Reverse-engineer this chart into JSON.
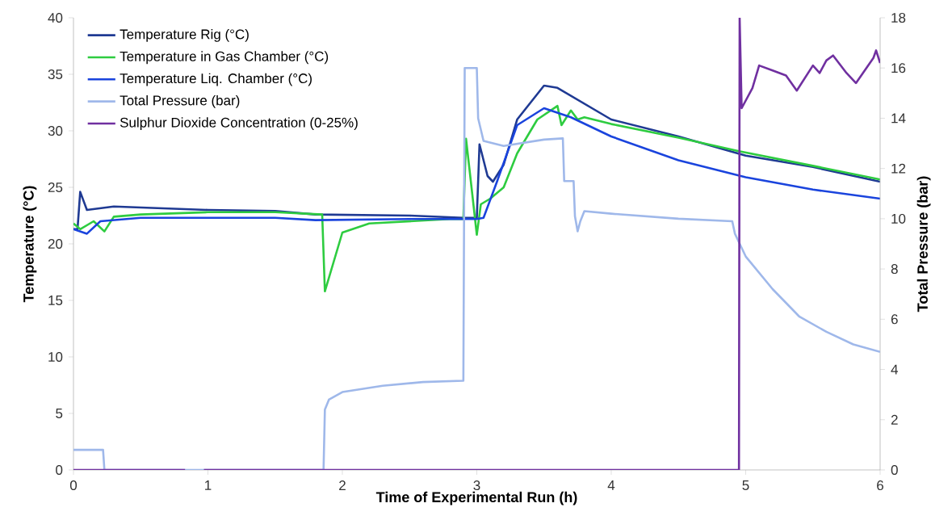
{
  "chart_data": {
    "type": "line",
    "xlabel": "Time of Experimental Run (h)",
    "ylabel": "Temperature (°C)",
    "y2label": "Total Pressure (bar)",
    "xlim": [
      0,
      6
    ],
    "xticks": [
      0,
      1,
      2,
      3,
      4,
      5,
      6
    ],
    "ylim": [
      0,
      40
    ],
    "yticks": [
      0,
      5,
      10,
      15,
      20,
      25,
      30,
      35,
      40
    ],
    "y2lim": [
      0,
      18
    ],
    "y2ticks": [
      0,
      2,
      4,
      6,
      8,
      10,
      12,
      14,
      16,
      18
    ],
    "legend": "top left",
    "grid": false,
    "marker": "none",
    "line_style": "solid",
    "series": [
      {
        "name": "Temperature Rig (°C)",
        "color": "#1f3a93",
        "x": [
          0,
          0.03,
          0.05,
          0.1,
          0.3,
          1,
          1.5,
          1.8,
          2.5,
          2.9,
          3.0,
          3.02,
          3.08,
          3.12,
          3.2,
          3.3,
          3.5,
          3.6,
          4.0,
          4.5,
          5.0,
          5.5,
          6.0
        ],
        "values": [
          21.3,
          21.3,
          24.6,
          23.0,
          23.3,
          23.0,
          22.9,
          22.6,
          22.5,
          22.3,
          22.3,
          28.8,
          26.0,
          25.5,
          27.0,
          31.0,
          34.0,
          33.8,
          31.0,
          29.5,
          27.8,
          26.8,
          25.5
        ]
      },
      {
        "name": "Temperature in Gas Chamber (°C)",
        "color": "#2ecc40",
        "x": [
          0,
          0.05,
          0.15,
          0.23,
          0.3,
          0.5,
          1,
          1.5,
          1.85,
          1.87,
          2.0,
          2.2,
          2.8,
          2.9,
          2.92,
          2.97,
          3.0,
          3.03,
          3.1,
          3.2,
          3.3,
          3.45,
          3.6,
          3.63,
          3.7,
          3.75,
          3.8,
          4.0,
          4.5,
          4.95,
          5.5,
          6.0
        ],
        "values": [
          21.8,
          21.3,
          22.0,
          21.1,
          22.4,
          22.6,
          22.8,
          22.8,
          22.6,
          15.8,
          21.0,
          21.8,
          22.2,
          22.2,
          29.3,
          24.0,
          20.8,
          23.5,
          24.0,
          25.0,
          28.0,
          31.0,
          32.2,
          30.5,
          31.8,
          31.0,
          31.2,
          30.6,
          29.4,
          28.2,
          26.9,
          25.7
        ]
      },
      {
        "name": "Temperature Liq. Chamber (°C)",
        "color": "#1a44dd",
        "x": [
          0,
          0.1,
          0.2,
          0.5,
          1.5,
          1.8,
          2.5,
          3.0,
          3.05,
          3.15,
          3.3,
          3.5,
          3.7,
          4.0,
          4.5,
          5.0,
          5.5,
          6.0
        ],
        "values": [
          21.3,
          20.9,
          22.0,
          22.3,
          22.3,
          22.1,
          22.2,
          22.2,
          22.3,
          25.5,
          30.5,
          32.0,
          31.2,
          29.5,
          27.4,
          25.9,
          24.8,
          24.0
        ]
      },
      {
        "name": "Total Pressure (bar)",
        "color": "#9fb8ea",
        "axis": "y2",
        "x": [
          0,
          0.22,
          0.23,
          1.86,
          1.87,
          1.9,
          2.0,
          2.3,
          2.6,
          2.9,
          2.91,
          3.0,
          3.01,
          3.05,
          3.2,
          3.5,
          3.64,
          3.65,
          3.72,
          3.73,
          3.75,
          3.77,
          3.8,
          4.0,
          4.5,
          4.9,
          4.92,
          5.0,
          5.2,
          5.4,
          5.6,
          5.8,
          6.0
        ],
        "values": [
          0.8,
          0.8,
          0,
          0,
          2.4,
          2.8,
          3.1,
          3.35,
          3.5,
          3.55,
          16.0,
          16.0,
          14.0,
          13.1,
          12.9,
          13.15,
          13.2,
          11.5,
          11.5,
          10.1,
          9.5,
          9.9,
          10.3,
          10.2,
          10.0,
          9.9,
          9.4,
          8.5,
          7.2,
          6.1,
          5.5,
          5.0,
          4.7
        ]
      },
      {
        "name": "Sulphur Dioxide Concentration (0-25%)",
        "color": "#7030a0",
        "axis": "y2",
        "x": [
          0,
          0.83,
          0.9,
          0.97,
          4.95,
          4.955,
          4.97,
          5.05,
          5.1,
          5.2,
          5.3,
          5.38,
          5.5,
          5.55,
          5.6,
          5.65,
          5.75,
          5.82,
          5.95,
          5.97,
          6.0
        ],
        "values": [
          0,
          0,
          null,
          0,
          0,
          18,
          14.4,
          15.2,
          16.1,
          15.9,
          15.7,
          15.1,
          16.1,
          15.8,
          16.3,
          16.5,
          15.8,
          15.4,
          16.4,
          16.7,
          16.2
        ]
      }
    ]
  }
}
